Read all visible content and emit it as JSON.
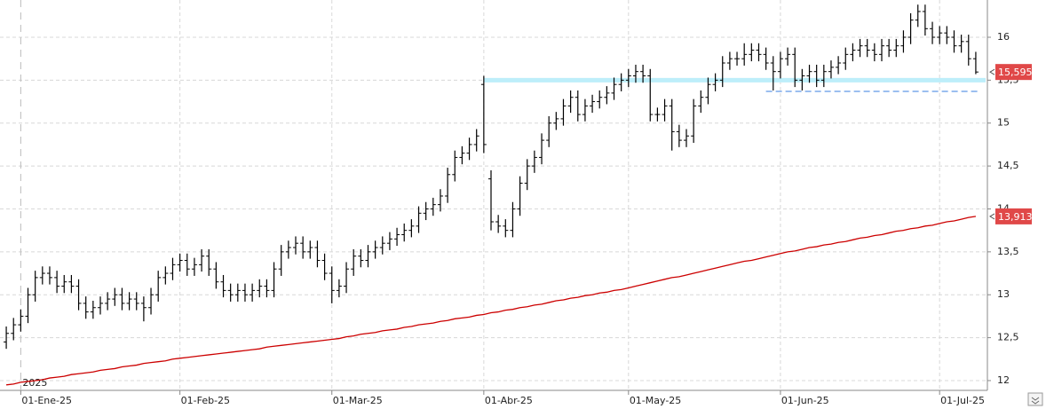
{
  "chart_data": {
    "type": "ohlc",
    "bar_color": "#000000",
    "year_label": "2025",
    "categories": [
      null,
      null,
      "01-Ene-25",
      null,
      null,
      null,
      null,
      null,
      null,
      null,
      null,
      null,
      null,
      null,
      null,
      null,
      null,
      null,
      null,
      null,
      null,
      null,
      null,
      null,
      "01-Feb-25",
      null,
      null,
      null,
      null,
      null,
      null,
      null,
      null,
      null,
      null,
      null,
      null,
      null,
      null,
      null,
      null,
      null,
      null,
      null,
      null,
      "01-Mar-25",
      null,
      null,
      null,
      null,
      null,
      null,
      null,
      null,
      null,
      null,
      null,
      null,
      null,
      null,
      null,
      null,
      null,
      null,
      null,
      null,
      "01-Abr-25",
      null,
      null,
      null,
      null,
      null,
      null,
      null,
      null,
      null,
      null,
      null,
      null,
      null,
      null,
      null,
      null,
      null,
      null,
      null,
      "01-May-25",
      null,
      null,
      null,
      null,
      null,
      null,
      null,
      null,
      null,
      null,
      null,
      null,
      null,
      null,
      null,
      null,
      null,
      null,
      null,
      null,
      "01-Jun-25",
      null,
      null,
      null,
      null,
      null,
      null,
      null,
      null,
      null,
      null,
      null,
      null,
      null,
      null,
      null,
      null,
      null,
      null,
      null,
      null,
      null,
      "01-Jul-25",
      null,
      null,
      null,
      null,
      null
    ],
    "open": [
      12.45,
      12.55,
      12.65,
      12.75,
      13.0,
      13.2,
      13.25,
      13.2,
      13.1,
      13.15,
      13.1,
      12.9,
      12.8,
      12.85,
      12.9,
      12.95,
      13.0,
      12.9,
      12.95,
      12.9,
      12.85,
      13.0,
      13.2,
      13.25,
      13.35,
      13.4,
      13.3,
      13.35,
      13.45,
      13.3,
      13.15,
      13.05,
      13.0,
      13.05,
      13.0,
      13.05,
      13.1,
      13.05,
      13.3,
      13.5,
      13.55,
      13.6,
      13.5,
      13.55,
      13.4,
      13.25,
      13.05,
      13.1,
      13.3,
      13.45,
      13.4,
      13.5,
      13.55,
      13.6,
      13.65,
      13.7,
      13.75,
      13.8,
      13.95,
      14.0,
      14.05,
      14.15,
      14.4,
      14.6,
      14.65,
      14.75,
      15.45,
      14.35,
      13.85,
      13.8,
      13.75,
      14.0,
      14.3,
      14.5,
      14.6,
      14.8,
      15.0,
      15.05,
      15.2,
      15.3,
      15.1,
      15.2,
      15.25,
      15.3,
      15.35,
      15.45,
      15.5,
      15.55,
      15.6,
      15.55,
      15.1,
      15.1,
      15.2,
      14.9,
      14.8,
      14.85,
      15.2,
      15.3,
      15.45,
      15.5,
      15.7,
      15.75,
      15.75,
      15.8,
      15.85,
      15.8,
      15.7,
      15.6,
      15.75,
      15.8,
      15.5,
      15.55,
      15.6,
      15.5,
      15.6,
      15.65,
      15.7,
      15.8,
      15.85,
      15.9,
      15.85,
      15.8,
      15.9,
      15.85,
      15.9,
      16.0,
      16.2,
      16.3,
      16.1,
      16.0,
      16.05,
      16.0,
      15.9,
      15.95,
      15.75
    ],
    "high": [
      12.63,
      12.73,
      12.83,
      13.08,
      13.28,
      13.33,
      13.33,
      13.28,
      13.23,
      13.23,
      13.18,
      12.98,
      12.93,
      12.98,
      13.03,
      13.08,
      13.08,
      13.03,
      13.03,
      12.98,
      13.08,
      13.28,
      13.33,
      13.43,
      13.48,
      13.48,
      13.43,
      13.53,
      13.53,
      13.38,
      13.23,
      13.13,
      13.13,
      13.13,
      13.13,
      13.18,
      13.18,
      13.38,
      13.58,
      13.63,
      13.68,
      13.68,
      13.63,
      13.63,
      13.48,
      13.33,
      13.18,
      13.38,
      13.53,
      13.53,
      13.58,
      13.63,
      13.68,
      13.73,
      13.78,
      13.83,
      13.88,
      14.03,
      14.08,
      14.13,
      14.23,
      14.48,
      14.68,
      14.73,
      14.83,
      14.93,
      15.55,
      14.45,
      13.93,
      13.88,
      14.08,
      14.38,
      14.58,
      14.68,
      14.88,
      15.08,
      15.13,
      15.28,
      15.38,
      15.38,
      15.28,
      15.33,
      15.38,
      15.43,
      15.53,
      15.58,
      15.63,
      15.68,
      15.68,
      15.63,
      15.18,
      15.28,
      15.28,
      14.98,
      14.93,
      15.28,
      15.38,
      15.53,
      15.58,
      15.78,
      15.83,
      15.83,
      15.93,
      15.93,
      15.93,
      15.88,
      15.78,
      15.83,
      15.88,
      15.88,
      15.63,
      15.68,
      15.68,
      15.68,
      15.73,
      15.78,
      15.88,
      15.93,
      15.98,
      15.98,
      15.93,
      15.98,
      15.98,
      15.98,
      16.08,
      16.28,
      16.38,
      16.38,
      16.18,
      16.13,
      16.13,
      16.08,
      16.03,
      16.03,
      15.83
    ],
    "low": [
      12.37,
      12.47,
      12.57,
      12.67,
      12.92,
      13.12,
      13.12,
      13.02,
      13.02,
      13.02,
      12.82,
      12.72,
      12.72,
      12.77,
      12.82,
      12.87,
      12.82,
      12.82,
      12.82,
      12.69,
      12.77,
      12.92,
      13.12,
      13.17,
      13.27,
      13.22,
      13.22,
      13.27,
      13.22,
      13.07,
      12.97,
      12.92,
      12.92,
      12.92,
      12.92,
      12.97,
      12.97,
      12.97,
      13.22,
      13.42,
      13.47,
      13.42,
      13.42,
      13.32,
      13.17,
      12.9,
      12.97,
      13.02,
      13.22,
      13.32,
      13.32,
      13.42,
      13.47,
      13.52,
      13.57,
      13.62,
      13.67,
      13.72,
      13.87,
      13.92,
      13.97,
      14.07,
      14.32,
      14.52,
      14.57,
      14.67,
      14.65,
      13.75,
      13.72,
      13.67,
      13.67,
      13.92,
      14.22,
      14.42,
      14.52,
      14.72,
      14.92,
      14.97,
      15.12,
      15.02,
      15.02,
      15.12,
      15.17,
      15.22,
      15.27,
      15.37,
      15.42,
      15.47,
      15.47,
      15.02,
      15.02,
      15.02,
      14.68,
      14.72,
      14.72,
      14.77,
      15.12,
      15.22,
      15.37,
      15.42,
      15.62,
      15.67,
      15.67,
      15.72,
      15.72,
      15.62,
      15.38,
      15.52,
      15.67,
      15.42,
      15.38,
      15.47,
      15.42,
      15.42,
      15.52,
      15.57,
      15.62,
      15.72,
      15.77,
      15.77,
      15.72,
      15.72,
      15.77,
      15.77,
      15.82,
      15.92,
      16.12,
      16.02,
      15.92,
      15.92,
      15.92,
      15.82,
      15.82,
      15.67,
      15.57
    ],
    "close": [
      12.55,
      12.65,
      12.75,
      13.0,
      13.2,
      13.25,
      13.2,
      13.1,
      13.15,
      13.1,
      12.9,
      12.8,
      12.85,
      12.9,
      12.95,
      13.0,
      12.9,
      12.95,
      12.9,
      12.85,
      13.0,
      13.2,
      13.25,
      13.35,
      13.4,
      13.3,
      13.35,
      13.45,
      13.3,
      13.15,
      13.05,
      13.0,
      13.05,
      13.0,
      13.05,
      13.1,
      13.05,
      13.3,
      13.5,
      13.55,
      13.6,
      13.5,
      13.55,
      13.4,
      13.25,
      13.05,
      13.1,
      13.3,
      13.45,
      13.4,
      13.5,
      13.55,
      13.6,
      13.65,
      13.7,
      13.75,
      13.8,
      13.95,
      14.0,
      14.05,
      14.15,
      14.4,
      14.6,
      14.65,
      14.75,
      14.85,
      14.75,
      13.85,
      13.8,
      13.75,
      14.0,
      14.3,
      14.5,
      14.6,
      14.8,
      15.0,
      15.05,
      15.2,
      15.3,
      15.1,
      15.2,
      15.25,
      15.3,
      15.35,
      15.45,
      15.5,
      15.55,
      15.6,
      15.55,
      15.1,
      15.1,
      15.2,
      14.9,
      14.8,
      14.85,
      15.2,
      15.3,
      15.45,
      15.5,
      15.7,
      15.75,
      15.75,
      15.8,
      15.85,
      15.8,
      15.7,
      15.6,
      15.75,
      15.8,
      15.5,
      15.55,
      15.6,
      15.5,
      15.6,
      15.65,
      15.7,
      15.8,
      15.85,
      15.9,
      15.85,
      15.8,
      15.9,
      15.85,
      15.9,
      16.0,
      16.2,
      16.3,
      16.1,
      16.0,
      16.05,
      16.0,
      15.9,
      15.95,
      15.75,
      15.595
    ],
    "moving_average": {
      "color": "#cc0000",
      "values": [
        11.95,
        11.96,
        11.98,
        11.99,
        12.0,
        12.01,
        12.03,
        12.04,
        12.05,
        12.07,
        12.08,
        12.09,
        12.1,
        12.12,
        12.13,
        12.14,
        12.16,
        12.17,
        12.18,
        12.2,
        12.21,
        12.22,
        12.23,
        12.25,
        12.26,
        12.27,
        12.28,
        12.29,
        12.3,
        12.31,
        12.32,
        12.33,
        12.34,
        12.35,
        12.36,
        12.37,
        12.39,
        12.4,
        12.41,
        12.42,
        12.43,
        12.44,
        12.45,
        12.46,
        12.47,
        12.48,
        12.49,
        12.51,
        12.52,
        12.54,
        12.55,
        12.56,
        12.58,
        12.59,
        12.6,
        12.62,
        12.63,
        12.65,
        12.66,
        12.67,
        12.69,
        12.7,
        12.72,
        12.73,
        12.74,
        12.76,
        12.77,
        12.79,
        12.8,
        12.82,
        12.83,
        12.85,
        12.86,
        12.88,
        12.89,
        12.91,
        12.93,
        12.94,
        12.96,
        12.97,
        12.99,
        13.0,
        13.02,
        13.03,
        13.05,
        13.06,
        13.08,
        13.1,
        13.12,
        13.14,
        13.16,
        13.18,
        13.2,
        13.21,
        13.23,
        13.25,
        13.27,
        13.29,
        13.31,
        13.33,
        13.35,
        13.37,
        13.39,
        13.4,
        13.42,
        13.44,
        13.46,
        13.48,
        13.5,
        13.51,
        13.53,
        13.55,
        13.56,
        13.58,
        13.59,
        13.61,
        13.62,
        13.64,
        13.66,
        13.67,
        13.69,
        13.7,
        13.72,
        13.74,
        13.75,
        13.77,
        13.78,
        13.8,
        13.81,
        13.83,
        13.85,
        13.86,
        13.88,
        13.9,
        13.913
      ]
    },
    "levels": [
      {
        "value": 15.5,
        "color": "#bdeefa",
        "style": "solid"
      },
      {
        "value": 15.37,
        "color": "#9cbff0",
        "style": "dashed"
      }
    ],
    "price_tags": [
      {
        "value": 15.595,
        "label": "15,595",
        "color": "#e04848"
      },
      {
        "value": 13.913,
        "label": "13,913",
        "color": "#e04848"
      }
    ],
    "ylim": [
      11.886,
      16.434
    ],
    "yticks": [
      12,
      {
        "value": 12.5,
        "label": "12,5"
      },
      13,
      {
        "value": 13.5,
        "label": "13,5"
      },
      14,
      {
        "value": 14.5,
        "label": "14,5"
      },
      15,
      {
        "value": 15.5,
        "label": "15,5"
      },
      16
    ],
    "grid": true
  }
}
